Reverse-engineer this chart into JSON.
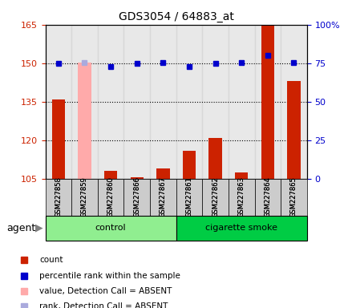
{
  "title": "GDS3054 / 64883_at",
  "samples": [
    "GSM227858",
    "GSM227859",
    "GSM227860",
    "GSM227866",
    "GSM227867",
    "GSM227861",
    "GSM227862",
    "GSM227863",
    "GSM227864",
    "GSM227865"
  ],
  "count_values": [
    136.0,
    150.2,
    108.0,
    105.5,
    109.0,
    116.0,
    121.0,
    107.5,
    165.0,
    143.0
  ],
  "count_absent": [
    false,
    true,
    false,
    false,
    false,
    false,
    false,
    false,
    false,
    false
  ],
  "rank_values": [
    75.0,
    75.5,
    73.0,
    75.0,
    75.5,
    73.0,
    75.0,
    75.5,
    80.0,
    75.5
  ],
  "rank_absent": [
    false,
    true,
    false,
    false,
    false,
    false,
    false,
    false,
    false,
    false
  ],
  "ylim_left": [
    105,
    165
  ],
  "ylim_right": [
    0,
    100
  ],
  "yticks_left": [
    105,
    120,
    135,
    150,
    165
  ],
  "yticks_right": [
    0,
    25,
    50,
    75,
    100
  ],
  "groups": [
    {
      "label": "control",
      "start": 0,
      "end": 5,
      "color": "#90ee90"
    },
    {
      "label": "cigarette smoke",
      "start": 5,
      "end": 10,
      "color": "#00cc44"
    }
  ],
  "bar_color_present": "#cc2200",
  "bar_color_absent": "#ffaaaa",
  "rank_color_present": "#0000cc",
  "rank_color_absent": "#aaaadd",
  "agent_label": "agent",
  "legend": [
    {
      "label": "count",
      "color": "#cc2200",
      "marker": "s"
    },
    {
      "label": "percentile rank within the sample",
      "color": "#0000cc",
      "marker": "s"
    },
    {
      "label": "value, Detection Call = ABSENT",
      "color": "#ffaaaa",
      "marker": "s"
    },
    {
      "label": "rank, Detection Call = ABSENT",
      "color": "#aaaadd",
      "marker": "s"
    }
  ],
  "left_tick_color": "#cc2200",
  "right_tick_color": "#0000cc"
}
